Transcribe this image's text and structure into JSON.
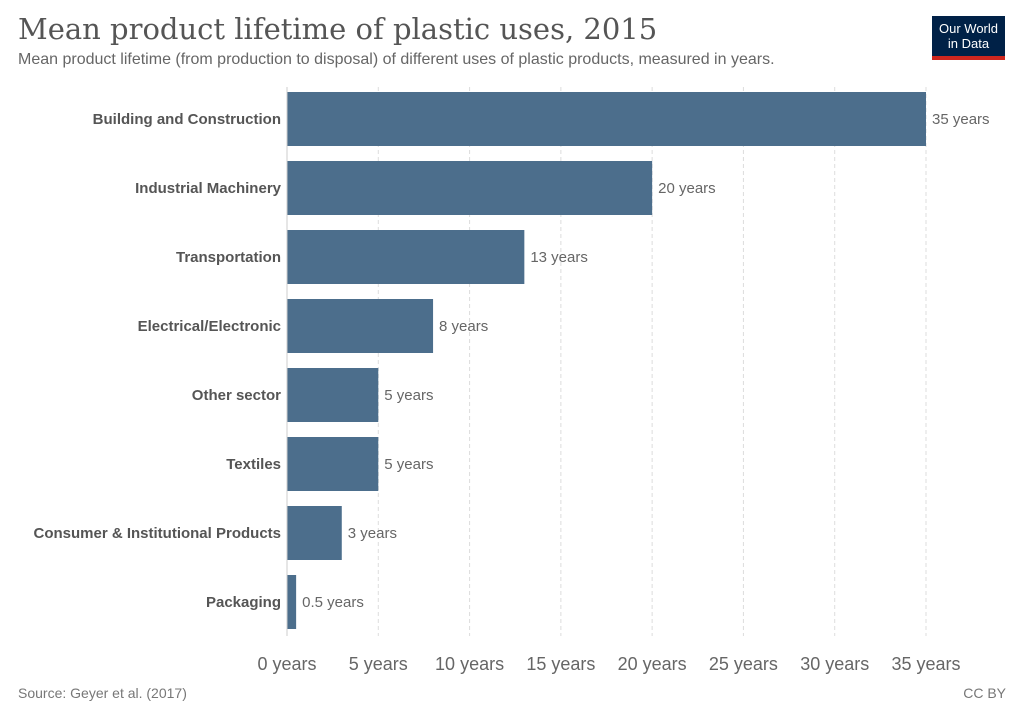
{
  "header": {
    "title": "Mean product lifetime of plastic uses, 2015",
    "subtitle": "Mean product lifetime (from production to disposal) of different uses of plastic products, measured in years."
  },
  "logo": {
    "line1": "Our World",
    "line2": "in Data"
  },
  "footer": {
    "source": "Source: Geyer et al. (2017)",
    "license": "CC BY"
  },
  "colors": {
    "bar": "#4c6e8c",
    "grid": "#dddddd",
    "label": "#555555",
    "value": "#666666"
  },
  "chart_data": {
    "type": "bar",
    "orientation": "horizontal",
    "categories": [
      "Building and Construction",
      "Industrial Machinery",
      "Transportation",
      "Electrical/Electronic",
      "Other sector",
      "Textiles",
      "Consumer & Institutional Products",
      "Packaging"
    ],
    "values": [
      35,
      20,
      13,
      8,
      5,
      5,
      3,
      0.5
    ],
    "value_labels": [
      "35 years",
      "20 years",
      "13 years",
      "8 years",
      "5 years",
      "5 years",
      "3 years",
      "0.5 years"
    ],
    "xlim": [
      0,
      35
    ],
    "x_ticks": [
      0,
      5,
      10,
      15,
      20,
      25,
      30,
      35
    ],
    "x_tick_labels": [
      "0 years",
      "5 years",
      "10 years",
      "15 years",
      "20 years",
      "25 years",
      "30 years",
      "35 years"
    ],
    "grid": true
  }
}
